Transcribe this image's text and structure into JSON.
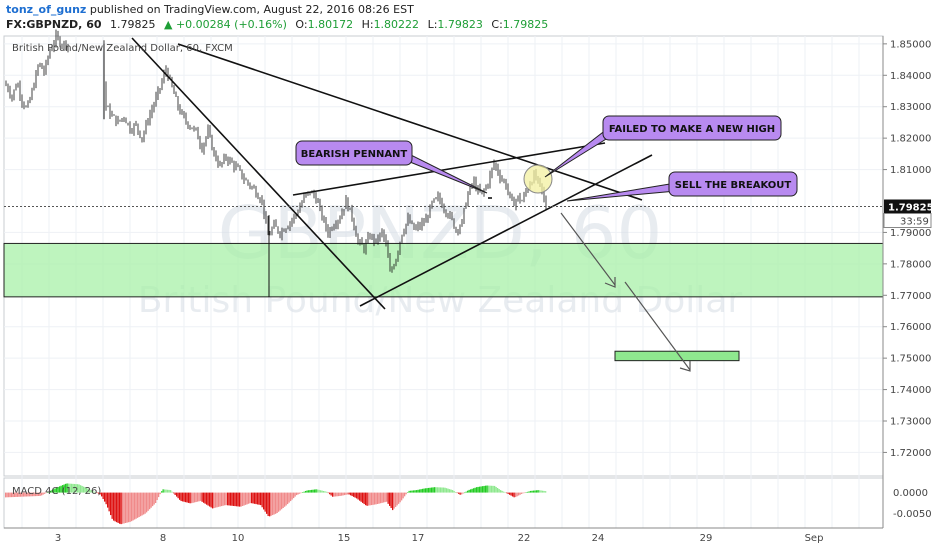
{
  "header": {
    "author": "tonz_of_gunz",
    "published": "published on TradingView.com, August 22, 2016 08:26 EST",
    "symbol": "FX:GBPNZD, 60",
    "last": "1.79825",
    "change": "▲ +0.00284 (+0.16%)",
    "o_label": "O:",
    "o_value": "1.80172",
    "h_label": "H:",
    "h_value": "1.80222",
    "l_label": "L:",
    "l_value": "1.79823",
    "c_label": "C:",
    "c_value": "1.79825"
  },
  "chart_data": {
    "type": "candlestick",
    "legend": "British Pound/New Zealand Dollar, 60, FXCM",
    "watermark_symbol": "GBPNZD, 60",
    "watermark_name": "British Pound/New Zealand Dollar",
    "ylim": [
      1.7125,
      1.8525
    ],
    "y_ticks": [
      "1.85000",
      "1.84000",
      "1.83000",
      "1.82000",
      "1.81000",
      "1.79000",
      "1.78000",
      "1.77000",
      "1.76000",
      "1.75000",
      "1.74000",
      "1.73000",
      "1.72000"
    ],
    "current_price": "1.79825",
    "countdown": "33:59",
    "x_ticks": [
      "3",
      "8",
      "10",
      "15",
      "17",
      "22",
      "24",
      "29",
      "Sep"
    ],
    "price_path": [
      [
        0,
        1.839
      ],
      [
        8,
        1.836
      ],
      [
        12,
        1.833
      ],
      [
        17,
        1.838
      ],
      [
        22,
        1.832
      ],
      [
        27,
        1.829
      ],
      [
        33,
        1.836
      ],
      [
        39,
        1.844
      ],
      [
        44,
        1.841
      ],
      [
        50,
        1.848
      ],
      [
        56,
        1.852
      ],
      [
        62,
        1.85
      ],
      [
        68,
        1.85
      ],
      [
        104,
        1.838
      ],
      [
        106,
        1.83
      ],
      [
        112,
        1.827
      ],
      [
        118,
        1.825
      ],
      [
        124,
        1.827
      ],
      [
        130,
        1.823
      ],
      [
        136,
        1.824
      ],
      [
        142,
        1.82
      ],
      [
        148,
        1.826
      ],
      [
        154,
        1.831
      ],
      [
        160,
        1.836
      ],
      [
        166,
        1.842
      ],
      [
        172,
        1.836
      ],
      [
        178,
        1.83
      ],
      [
        184,
        1.826
      ],
      [
        190,
        1.824
      ],
      [
        196,
        1.822
      ],
      [
        202,
        1.817
      ],
      [
        208,
        1.822
      ],
      [
        214,
        1.815
      ],
      [
        220,
        1.811
      ],
      [
        226,
        1.814
      ],
      [
        232,
        1.812
      ],
      [
        238,
        1.81
      ],
      [
        244,
        1.807
      ],
      [
        250,
        1.805
      ],
      [
        256,
        1.803
      ],
      [
        262,
        1.8
      ],
      [
        268,
        1.789
      ],
      [
        274,
        1.792
      ],
      [
        280,
        1.79
      ],
      [
        286,
        1.792
      ],
      [
        292,
        1.794
      ],
      [
        298,
        1.797
      ],
      [
        304,
        1.801
      ],
      [
        310,
        1.803
      ],
      [
        316,
        1.801
      ],
      [
        322,
        1.795
      ],
      [
        328,
        1.79
      ],
      [
        334,
        1.793
      ],
      [
        340,
        1.795
      ],
      [
        346,
        1.8
      ],
      [
        352,
        1.795
      ],
      [
        358,
        1.787
      ],
      [
        364,
        1.785
      ],
      [
        370,
        1.789
      ],
      [
        376,
        1.787
      ],
      [
        382,
        1.79
      ],
      [
        386,
        1.786
      ],
      [
        390,
        1.777
      ],
      [
        396,
        1.782
      ],
      [
        402,
        1.79
      ],
      [
        408,
        1.794
      ],
      [
        414,
        1.791
      ],
      [
        420,
        1.792
      ],
      [
        426,
        1.794
      ],
      [
        432,
        1.799
      ],
      [
        438,
        1.801
      ],
      [
        444,
        1.798
      ],
      [
        450,
        1.795
      ],
      [
        456,
        1.791
      ],
      [
        462,
        1.793
      ],
      [
        466,
        1.8
      ],
      [
        470,
        1.804
      ],
      [
        474,
        1.806
      ],
      [
        478,
        1.803
      ],
      [
        482,
        1.802
      ],
      [
        488,
        1.806
      ],
      [
        494,
        1.812
      ],
      [
        500,
        1.808
      ],
      [
        506,
        1.805
      ],
      [
        512,
        1.799
      ],
      [
        518,
        1.801
      ],
      [
        522,
        1.8
      ],
      [
        526,
        1.803
      ],
      [
        530,
        1.806
      ],
      [
        534,
        1.808
      ],
      [
        538,
        1.806
      ],
      [
        542,
        1.803
      ],
      [
        546,
        1.798
      ]
    ],
    "macd": {
      "label": "MACD 4C (12, 26)",
      "ylim": [
        -0.0085,
        0.0035
      ],
      "y_ticks": [
        "0.0000",
        "-0.0050"
      ],
      "path": [
        [
          0,
          -0.0012
        ],
        [
          20,
          -0.001
        ],
        [
          40,
          -0.0008
        ],
        [
          56,
          0.0012
        ],
        [
          66,
          0.0022
        ],
        [
          78,
          0.002
        ],
        [
          92,
          0.0004
        ],
        [
          100,
          -0.0005
        ],
        [
          106,
          -0.003
        ],
        [
          112,
          -0.0066
        ],
        [
          120,
          -0.0076
        ],
        [
          130,
          -0.007
        ],
        [
          145,
          -0.005
        ],
        [
          155,
          -0.0025
        ],
        [
          162,
          0.0008
        ],
        [
          170,
          0.0006
        ],
        [
          180,
          -0.002
        ],
        [
          190,
          -0.0026
        ],
        [
          200,
          -0.002
        ],
        [
          212,
          -0.0038
        ],
        [
          225,
          -0.003
        ],
        [
          240,
          -0.0034
        ],
        [
          250,
          -0.0025
        ],
        [
          260,
          -0.003
        ],
        [
          268,
          -0.0058
        ],
        [
          276,
          -0.005
        ],
        [
          286,
          -0.003
        ],
        [
          296,
          -0.0006
        ],
        [
          306,
          0.0005
        ],
        [
          316,
          0.0008
        ],
        [
          326,
          0.0002
        ],
        [
          332,
          -0.001
        ],
        [
          340,
          -0.0008
        ],
        [
          348,
          -0.0004
        ],
        [
          356,
          -0.0014
        ],
        [
          366,
          -0.0032
        ],
        [
          376,
          -0.0028
        ],
        [
          386,
          -0.0022
        ],
        [
          392,
          -0.0042
        ],
        [
          400,
          -0.0022
        ],
        [
          408,
          0.0004
        ],
        [
          416,
          0.0006
        ],
        [
          424,
          0.001
        ],
        [
          434,
          0.0013
        ],
        [
          444,
          0.0012
        ],
        [
          452,
          0.0006
        ],
        [
          460,
          -0.0006
        ],
        [
          468,
          0.0006
        ],
        [
          476,
          0.0013
        ],
        [
          486,
          0.0017
        ],
        [
          494,
          0.0016
        ],
        [
          500,
          0.0006
        ],
        [
          508,
          -0.0004
        ],
        [
          514,
          -0.0012
        ],
        [
          522,
          -0.0002
        ],
        [
          530,
          0.0004
        ],
        [
          538,
          0.0006
        ],
        [
          546,
          0.0003
        ]
      ]
    },
    "annotations": [
      {
        "text": "BEARISH PENNANT"
      },
      {
        "text": "FAILED TO MAKE A NEW HIGH"
      },
      {
        "text": "SELL THE BREAKOUT"
      }
    ],
    "support_zone": [
      1.7695,
      1.7865
    ],
    "target_zone": [
      1.7492,
      1.7522
    ]
  }
}
